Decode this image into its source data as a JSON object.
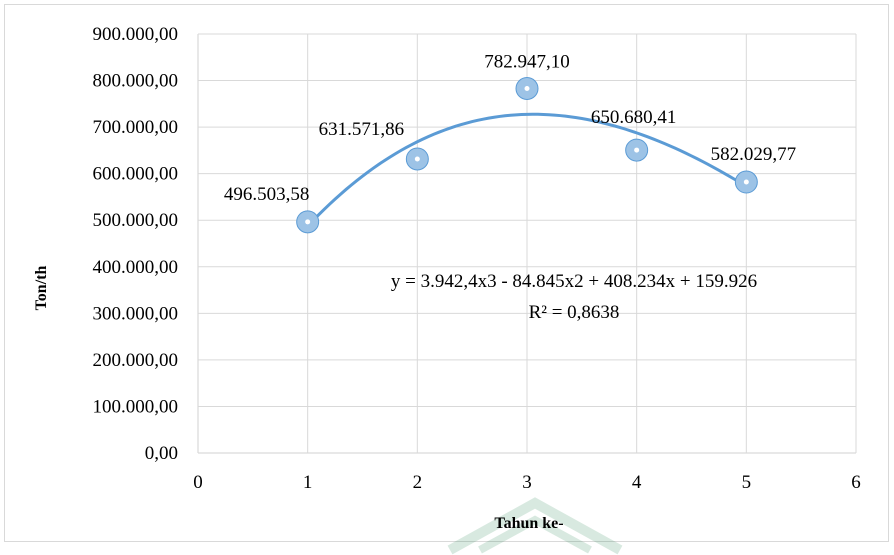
{
  "chart_data": {
    "type": "scatter",
    "xlabel": "Tahun ke-",
    "ylabel": "Ton/th",
    "xlim": [
      0,
      6
    ],
    "ylim": [
      0,
      900000
    ],
    "grid": true,
    "x_ticks": [
      "0",
      "1",
      "2",
      "3",
      "4",
      "5",
      "6"
    ],
    "y_ticks": [
      "0,00",
      "100.000,00",
      "200.000,00",
      "300.000,00",
      "400.000,00",
      "500.000,00",
      "600.000,00",
      "700.000,00",
      "800.000,00",
      "900.000,00"
    ],
    "series": [
      {
        "x": [
          1,
          2,
          3,
          4,
          5
        ],
        "y": [
          496503.58,
          631571.86,
          782947.1,
          650680.41,
          582029.77
        ],
        "labels": [
          "496.503,58",
          "631.571,86",
          "782.947,10",
          "650.680,41",
          "582.029,77"
        ]
      }
    ],
    "trendline": {
      "type": "polynomial",
      "order": 3,
      "coefficients": [
        3942.4,
        -84845,
        408234,
        159926
      ],
      "equation": "y = 3.942,4x3 - 84.845x2 + 408.234x + 159.926",
      "r_squared": "R² = 0,8638"
    },
    "colors": {
      "marker": "#9dc3e6",
      "marker_edge": "#5b9bd5",
      "trendline": "#5b9bd5",
      "grid": "#d9d9d9"
    }
  }
}
